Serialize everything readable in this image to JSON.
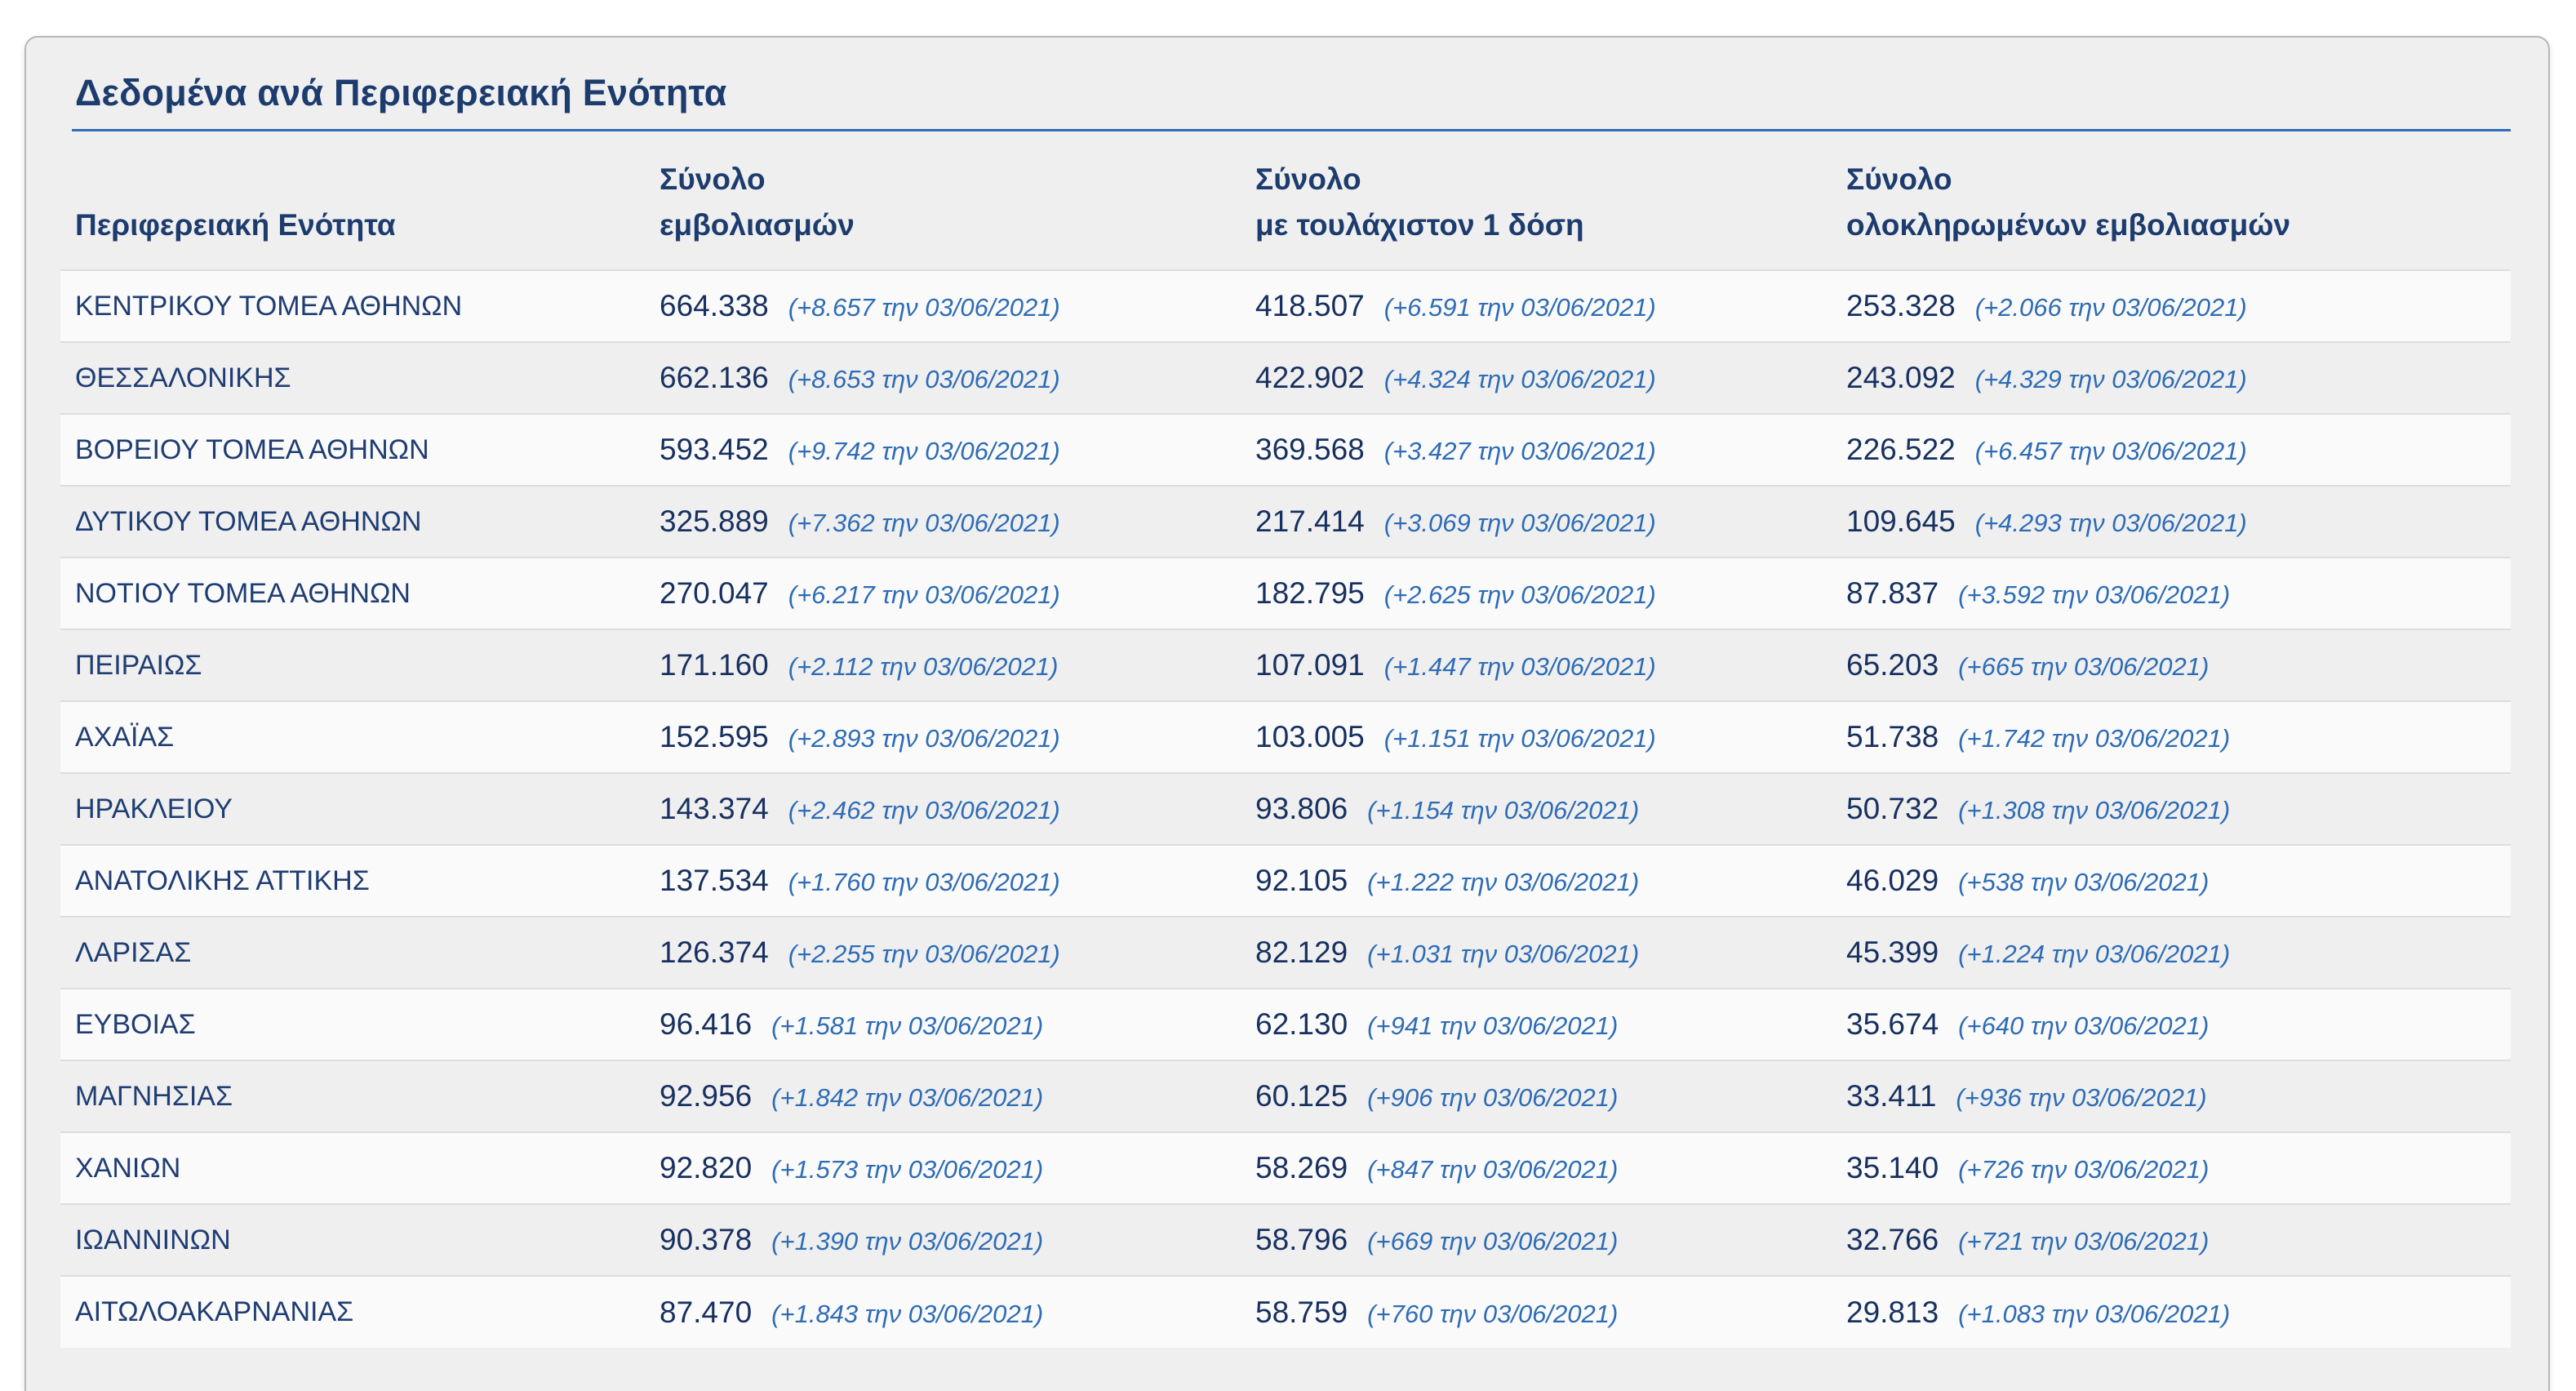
{
  "section": {
    "title": "Δεδομένα ανά Περιφερειακή Ενότητα"
  },
  "colors": {
    "heading_navy": "#1d3c6e",
    "value_navy": "#17305f",
    "delta_blue": "#2e6cb5",
    "divider_blue": "#2f6eb5",
    "card_background": "#efeff0",
    "row_alt_background": "#fafafa",
    "row_separator": "#dcdddf",
    "card_border": "#b5b8bb"
  },
  "chart_data": {
    "type": "table",
    "title": "Δεδομένα ανά Περιφερειακή Ενότητα",
    "columns": [
      "Περιφερειακή Ενότητα",
      "Σύνολο εμβολιασμών",
      "Σύνολο με τουλάχιστον 1 δόση",
      "Σύνολο ολοκληρωμένων εμβολιασμών"
    ],
    "column_lines": [
      [
        "Περιφερειακή Ενότητα"
      ],
      [
        "Σύνολο",
        "εμβολιασμών"
      ],
      [
        "Σύνολο",
        "με τουλάχιστον 1 δόση"
      ],
      [
        "Σύνολο",
        "ολοκληρωμένων εμβολιασμών"
      ]
    ],
    "delta_date": "03/06/2021",
    "rows": [
      {
        "region": "ΚΕΝΤΡΙΚΟΥ ΤΟΜΕΑ ΑΘΗΝΩΝ",
        "total": "664.338",
        "total_delta": "(+8.657 την 03/06/2021)",
        "at_least_one_dose": "418.507",
        "at_least_one_dose_delta": "(+6.591 την 03/06/2021)",
        "completed": "253.328",
        "completed_delta": "(+2.066 την 03/06/2021)"
      },
      {
        "region": "ΘΕΣΣΑΛΟΝΙΚΗΣ",
        "total": "662.136",
        "total_delta": "(+8.653 την 03/06/2021)",
        "at_least_one_dose": "422.902",
        "at_least_one_dose_delta": "(+4.324 την 03/06/2021)",
        "completed": "243.092",
        "completed_delta": "(+4.329 την 03/06/2021)"
      },
      {
        "region": "ΒΟΡΕΙΟΥ ΤΟΜΕΑ ΑΘΗΝΩΝ",
        "total": "593.452",
        "total_delta": "(+9.742 την 03/06/2021)",
        "at_least_one_dose": "369.568",
        "at_least_one_dose_delta": "(+3.427 την 03/06/2021)",
        "completed": "226.522",
        "completed_delta": "(+6.457 την 03/06/2021)"
      },
      {
        "region": "ΔΥΤΙΚΟΥ ΤΟΜΕΑ ΑΘΗΝΩΝ",
        "total": "325.889",
        "total_delta": "(+7.362 την 03/06/2021)",
        "at_least_one_dose": "217.414",
        "at_least_one_dose_delta": "(+3.069 την 03/06/2021)",
        "completed": "109.645",
        "completed_delta": "(+4.293 την 03/06/2021)"
      },
      {
        "region": "ΝΟΤΙΟΥ ΤΟΜΕΑ ΑΘΗΝΩΝ",
        "total": "270.047",
        "total_delta": "(+6.217 την 03/06/2021)",
        "at_least_one_dose": "182.795",
        "at_least_one_dose_delta": "(+2.625 την 03/06/2021)",
        "completed": "87.837",
        "completed_delta": "(+3.592 την 03/06/2021)"
      },
      {
        "region": "ΠΕΙΡΑΙΩΣ",
        "total": "171.160",
        "total_delta": "(+2.112 την 03/06/2021)",
        "at_least_one_dose": "107.091",
        "at_least_one_dose_delta": "(+1.447 την 03/06/2021)",
        "completed": "65.203",
        "completed_delta": "(+665 την 03/06/2021)"
      },
      {
        "region": "ΑΧΑΪΑΣ",
        "total": "152.595",
        "total_delta": "(+2.893 την 03/06/2021)",
        "at_least_one_dose": "103.005",
        "at_least_one_dose_delta": "(+1.151 την 03/06/2021)",
        "completed": "51.738",
        "completed_delta": "(+1.742 την 03/06/2021)"
      },
      {
        "region": "ΗΡΑΚΛΕΙΟΥ",
        "total": "143.374",
        "total_delta": "(+2.462 την 03/06/2021)",
        "at_least_one_dose": "93.806",
        "at_least_one_dose_delta": "(+1.154 την 03/06/2021)",
        "completed": "50.732",
        "completed_delta": "(+1.308 την 03/06/2021)"
      },
      {
        "region": "ΑΝΑΤΟΛΙΚΗΣ ΑΤΤΙΚΗΣ",
        "total": "137.534",
        "total_delta": "(+1.760 την 03/06/2021)",
        "at_least_one_dose": "92.105",
        "at_least_one_dose_delta": "(+1.222 την 03/06/2021)",
        "completed": "46.029",
        "completed_delta": "(+538 την 03/06/2021)"
      },
      {
        "region": "ΛΑΡΙΣΑΣ",
        "total": "126.374",
        "total_delta": "(+2.255 την 03/06/2021)",
        "at_least_one_dose": "82.129",
        "at_least_one_dose_delta": "(+1.031 την 03/06/2021)",
        "completed": "45.399",
        "completed_delta": "(+1.224 την 03/06/2021)"
      },
      {
        "region": "ΕΥΒΟΙΑΣ",
        "total": "96.416",
        "total_delta": "(+1.581 την 03/06/2021)",
        "at_least_one_dose": "62.130",
        "at_least_one_dose_delta": "(+941 την 03/06/2021)",
        "completed": "35.674",
        "completed_delta": "(+640 την 03/06/2021)"
      },
      {
        "region": "ΜΑΓΝΗΣΙΑΣ",
        "total": "92.956",
        "total_delta": "(+1.842 την 03/06/2021)",
        "at_least_one_dose": "60.125",
        "at_least_one_dose_delta": "(+906 την 03/06/2021)",
        "completed": "33.411",
        "completed_delta": "(+936 την 03/06/2021)"
      },
      {
        "region": "ΧΑΝΙΩΝ",
        "total": "92.820",
        "total_delta": "(+1.573 την 03/06/2021)",
        "at_least_one_dose": "58.269",
        "at_least_one_dose_delta": "(+847 την 03/06/2021)",
        "completed": "35.140",
        "completed_delta": "(+726 την 03/06/2021)"
      },
      {
        "region": "ΙΩΑΝΝΙΝΩΝ",
        "total": "90.378",
        "total_delta": "(+1.390 την 03/06/2021)",
        "at_least_one_dose": "58.796",
        "at_least_one_dose_delta": "(+669 την 03/06/2021)",
        "completed": "32.766",
        "completed_delta": "(+721 την 03/06/2021)"
      },
      {
        "region": "ΑΙΤΩΛΟΑΚΑΡΝΑΝΙΑΣ",
        "total": "87.470",
        "total_delta": "(+1.843 την 03/06/2021)",
        "at_least_one_dose": "58.759",
        "at_least_one_dose_delta": "(+760 την 03/06/2021)",
        "completed": "29.813",
        "completed_delta": "(+1.083 την 03/06/2021)"
      }
    ]
  }
}
